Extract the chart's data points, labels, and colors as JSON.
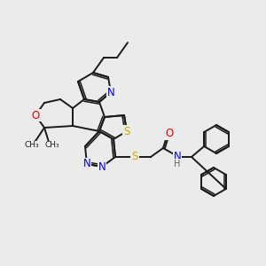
{
  "bg_color": "#ebebeb",
  "C": "#1a1a1a",
  "N": "#0000ee",
  "O": "#ee0000",
  "S": "#ccaa00",
  "H": "#606060",
  "lw": 1.4,
  "lw_double": 1.1
}
